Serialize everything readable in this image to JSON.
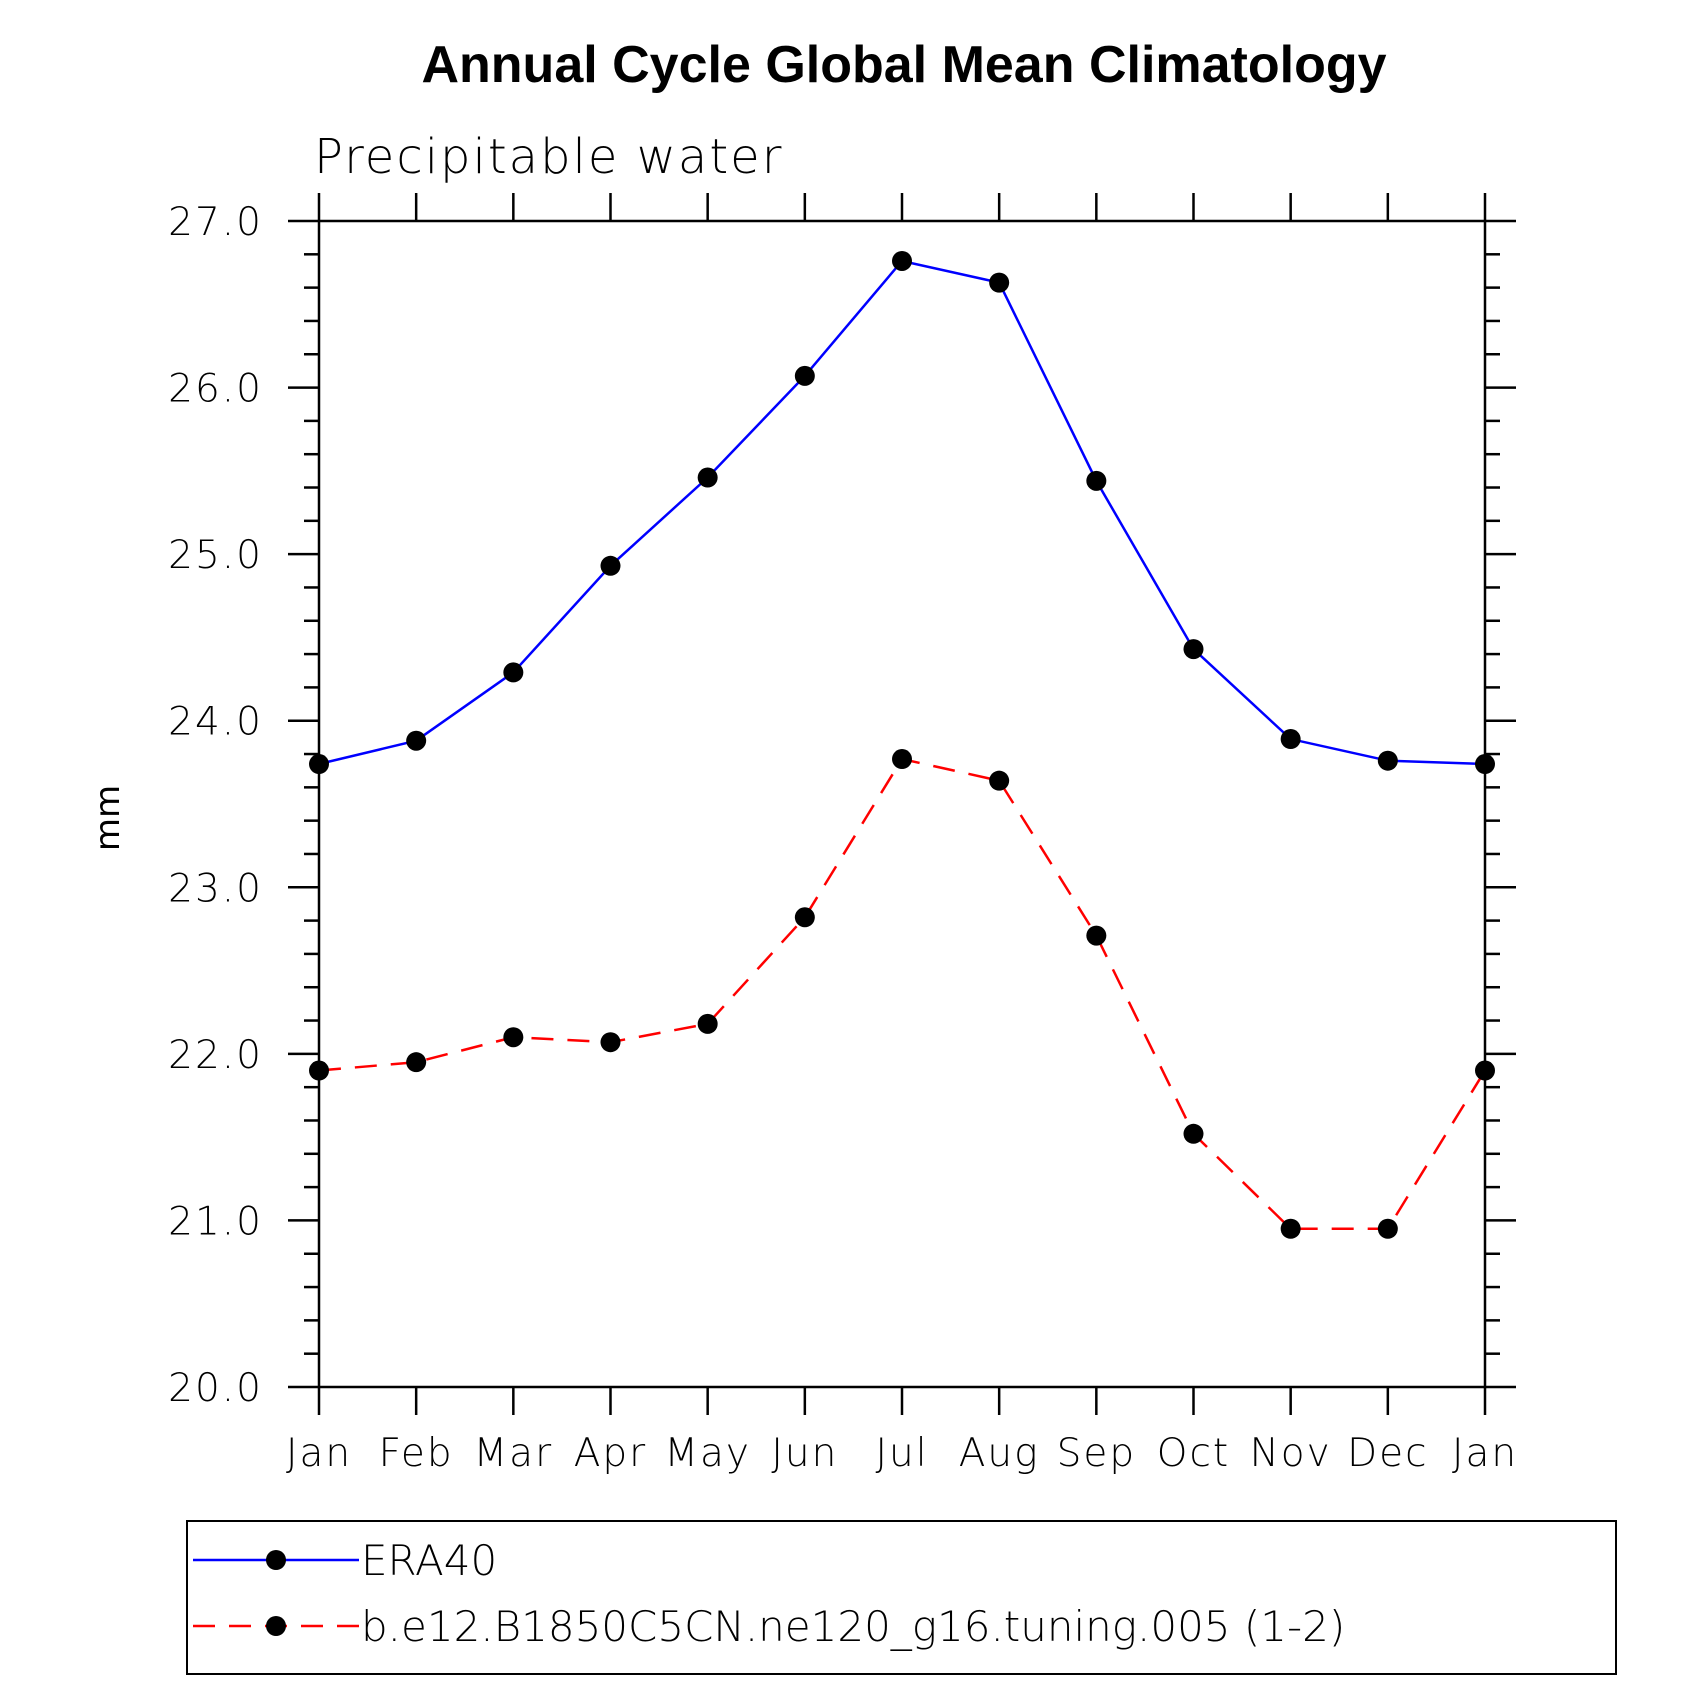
{
  "chart_data": {
    "type": "line",
    "title": "Annual Cycle Global Mean Climatology",
    "subtitle": "Precipitable water",
    "xlabel": "",
    "ylabel": "mm",
    "ylim": [
      20.0,
      27.0
    ],
    "yticks": [
      "20.0",
      "21.0",
      "22.0",
      "23.0",
      "24.0",
      "25.0",
      "26.0",
      "27.0"
    ],
    "yminor_per_major": 5,
    "categories": [
      "Jan",
      "Feb",
      "Mar",
      "Apr",
      "May",
      "Jun",
      "Jul",
      "Aug",
      "Sep",
      "Oct",
      "Nov",
      "Dec",
      "Jan"
    ],
    "series": [
      {
        "name": "ERA40",
        "color": "#0000ff",
        "dash": "solid",
        "marker": "filled-circle",
        "values": [
          23.74,
          23.88,
          24.29,
          24.93,
          25.46,
          26.07,
          26.76,
          26.63,
          25.44,
          24.43,
          23.89,
          23.76,
          23.74
        ]
      },
      {
        "name": "b.e12.B1850C5CN.ne120_g16.tuning.005 (1-2)",
        "color": "#ff0000",
        "dash": "dashed",
        "marker": "filled-circle",
        "values": [
          21.9,
          21.95,
          22.1,
          22.07,
          22.18,
          22.82,
          23.77,
          23.64,
          22.71,
          21.52,
          20.95,
          20.95,
          21.9
        ]
      }
    ],
    "legend_position": "bottom"
  }
}
